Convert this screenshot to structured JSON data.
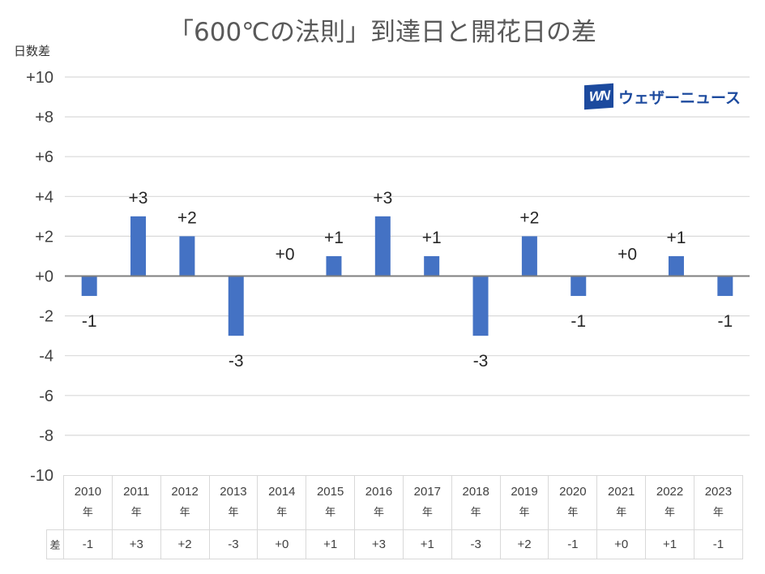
{
  "chart_data": {
    "type": "bar",
    "title": "「600℃の法則」到達日と開花日の差",
    "ylabel": "日数差",
    "xlabel": "",
    "ylim": [
      -10,
      10
    ],
    "grid": true,
    "yticks": [
      10,
      8,
      6,
      4,
      2,
      0,
      -2,
      -4,
      -6,
      -8,
      -10
    ],
    "ytick_labels": [
      "+10",
      "+8",
      "+6",
      "+4",
      "+2",
      "+0",
      "-2",
      "-4",
      "-6",
      "-8",
      "-10"
    ],
    "categories": [
      "2010",
      "2011",
      "2012",
      "2013",
      "2014",
      "2015",
      "2016",
      "2017",
      "2018",
      "2019",
      "2020",
      "2021",
      "2022",
      "2023"
    ],
    "values": [
      -1,
      3,
      2,
      -3,
      0,
      1,
      3,
      1,
      -3,
      2,
      -1,
      0,
      1,
      -1
    ],
    "data_labels": [
      "-1",
      "+3",
      "+2",
      "-3",
      "+0",
      "+1",
      "+3",
      "+1",
      "-3",
      "+2",
      "-1",
      "+0",
      "+1",
      "-1"
    ],
    "bar_color": "#4472c4",
    "legend": "none"
  },
  "table": {
    "year_suffix": "年",
    "row_label": "差"
  },
  "logo": {
    "mark": "WN",
    "text": "ウェザーニュース",
    "color": "#1c4a9e"
  }
}
